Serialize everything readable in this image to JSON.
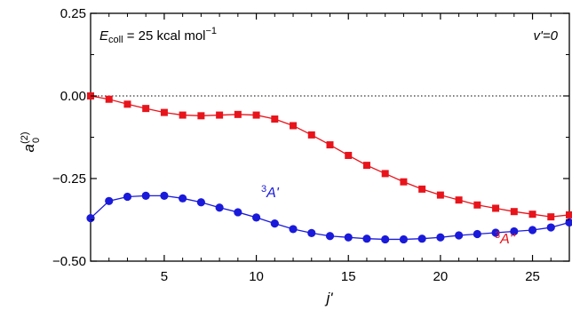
{
  "chart_data": {
    "type": "line",
    "xlabel": "j'",
    "ylabel_main": "a",
    "ylabel_sub": "0",
    "ylabel_sup": "(2)",
    "xlim": [
      1,
      27
    ],
    "ylim": [
      -0.5,
      0.25
    ],
    "xticks": [
      5,
      10,
      15,
      20,
      25
    ],
    "xtick_labels": [
      "5",
      "10",
      "15",
      "20",
      "25"
    ],
    "yticks": [
      0.25,
      0.0,
      -0.25,
      -0.5
    ],
    "ytick_labels": [
      "0.25",
      "0.00",
      "−0.25",
      "−0.50"
    ],
    "reference_line": 0.0,
    "annotation_left": {
      "prefix": "E",
      "sub": "coll",
      "text": " = 25 kcal mol",
      "sup": "−1"
    },
    "annotation_right": "v'=0",
    "series": [
      {
        "name_sup": "3",
        "name": "A''",
        "color": "#e8141b",
        "marker": "square",
        "x": [
          1,
          2,
          3,
          4,
          5,
          6,
          7,
          8,
          9,
          10,
          11,
          12,
          13,
          14,
          15,
          16,
          17,
          18,
          19,
          20,
          21,
          22,
          23,
          24,
          25,
          26,
          27
        ],
        "y": [
          0.0,
          -0.01,
          -0.025,
          -0.038,
          -0.05,
          -0.058,
          -0.06,
          -0.058,
          -0.056,
          -0.058,
          -0.07,
          -0.09,
          -0.118,
          -0.148,
          -0.18,
          -0.21,
          -0.235,
          -0.26,
          -0.282,
          -0.3,
          -0.315,
          -0.33,
          -0.34,
          -0.35,
          -0.358,
          -0.366,
          -0.36
        ]
      },
      {
        "name_sup": "3",
        "name": "A'",
        "color": "#1a1adb",
        "marker": "circle",
        "x": [
          1,
          2,
          3,
          4,
          5,
          6,
          7,
          8,
          9,
          10,
          11,
          12,
          13,
          14,
          15,
          16,
          17,
          18,
          19,
          20,
          21,
          22,
          23,
          24,
          25,
          26,
          27
        ],
        "y": [
          -0.37,
          -0.318,
          -0.305,
          -0.302,
          -0.302,
          -0.31,
          -0.322,
          -0.338,
          -0.352,
          -0.368,
          -0.386,
          -0.403,
          -0.415,
          -0.424,
          -0.428,
          -0.432,
          -0.434,
          -0.434,
          -0.432,
          -0.428,
          -0.422,
          -0.418,
          -0.414,
          -0.41,
          -0.406,
          -0.398,
          -0.383
        ]
      }
    ]
  }
}
